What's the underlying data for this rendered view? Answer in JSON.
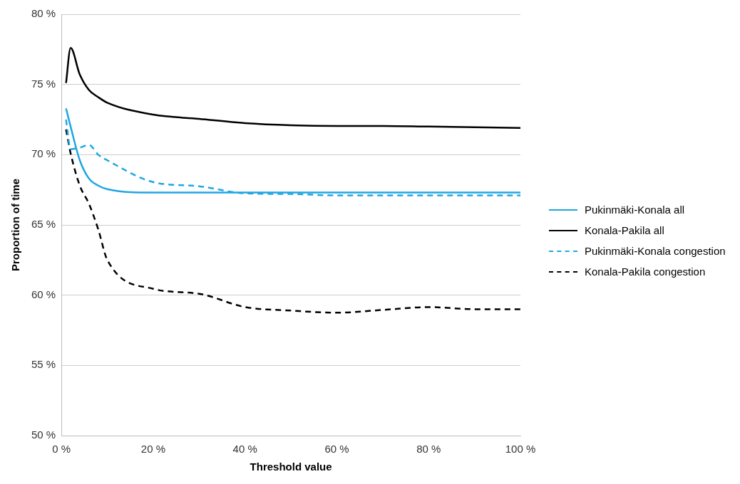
{
  "chart_data": {
    "type": "line",
    "xlabel": "Threshold value",
    "ylabel": "Proportion of time",
    "xlim": [
      0,
      100
    ],
    "ylim": [
      50,
      80
    ],
    "xticks": [
      {
        "value": 0,
        "label": "0 %"
      },
      {
        "value": 20,
        "label": "20 %"
      },
      {
        "value": 40,
        "label": "40 %"
      },
      {
        "value": 60,
        "label": "60 %"
      },
      {
        "value": 80,
        "label": "80 %"
      },
      {
        "value": 100,
        "label": "100 %"
      }
    ],
    "yticks": [
      {
        "value": 50,
        "label": "50 %"
      },
      {
        "value": 55,
        "label": "55 %"
      },
      {
        "value": 60,
        "label": "60 %"
      },
      {
        "value": 65,
        "label": "65 %"
      },
      {
        "value": 70,
        "label": "70 %"
      },
      {
        "value": 75,
        "label": "75 %"
      },
      {
        "value": 80,
        "label": "80 %"
      }
    ],
    "x": [
      1,
      2,
      4,
      6,
      8,
      10,
      20,
      30,
      40,
      50,
      60,
      70,
      80,
      90,
      100
    ],
    "grid": "y",
    "legend": "right",
    "marker": "none",
    "series": [
      {
        "name": "Pukinmäki-Konala all",
        "color": "#1ea7e1",
        "line_style": "solid",
        "values": [
          73.3,
          72.0,
          69.6,
          68.3,
          67.8,
          67.55,
          67.3,
          67.3,
          67.3,
          67.3,
          67.3,
          67.3,
          67.3,
          67.3,
          67.3
        ]
      },
      {
        "name": "Konala-Pakila all",
        "color": "#000000",
        "line_style": "solid",
        "values": [
          75.1,
          77.6,
          75.7,
          74.6,
          74.1,
          73.7,
          72.85,
          72.55,
          72.25,
          72.1,
          72.05,
          72.05,
          72.0,
          71.95,
          71.9
        ]
      },
      {
        "name": "Pukinmäki-Konala congestion",
        "color": "#1ea7e1",
        "line_style": "dashed",
        "values": [
          72.5,
          70.4,
          70.5,
          70.7,
          70.0,
          69.6,
          68.05,
          67.75,
          67.25,
          67.2,
          67.1,
          67.1,
          67.1,
          67.1,
          67.1
        ]
      },
      {
        "name": "Konala-Pakila congestion",
        "color": "#000000",
        "line_style": "dashed",
        "values": [
          71.8,
          70.1,
          67.8,
          66.5,
          64.7,
          62.5,
          60.45,
          60.1,
          59.15,
          58.9,
          58.75,
          58.95,
          59.15,
          59.0,
          59.0
        ]
      }
    ]
  }
}
